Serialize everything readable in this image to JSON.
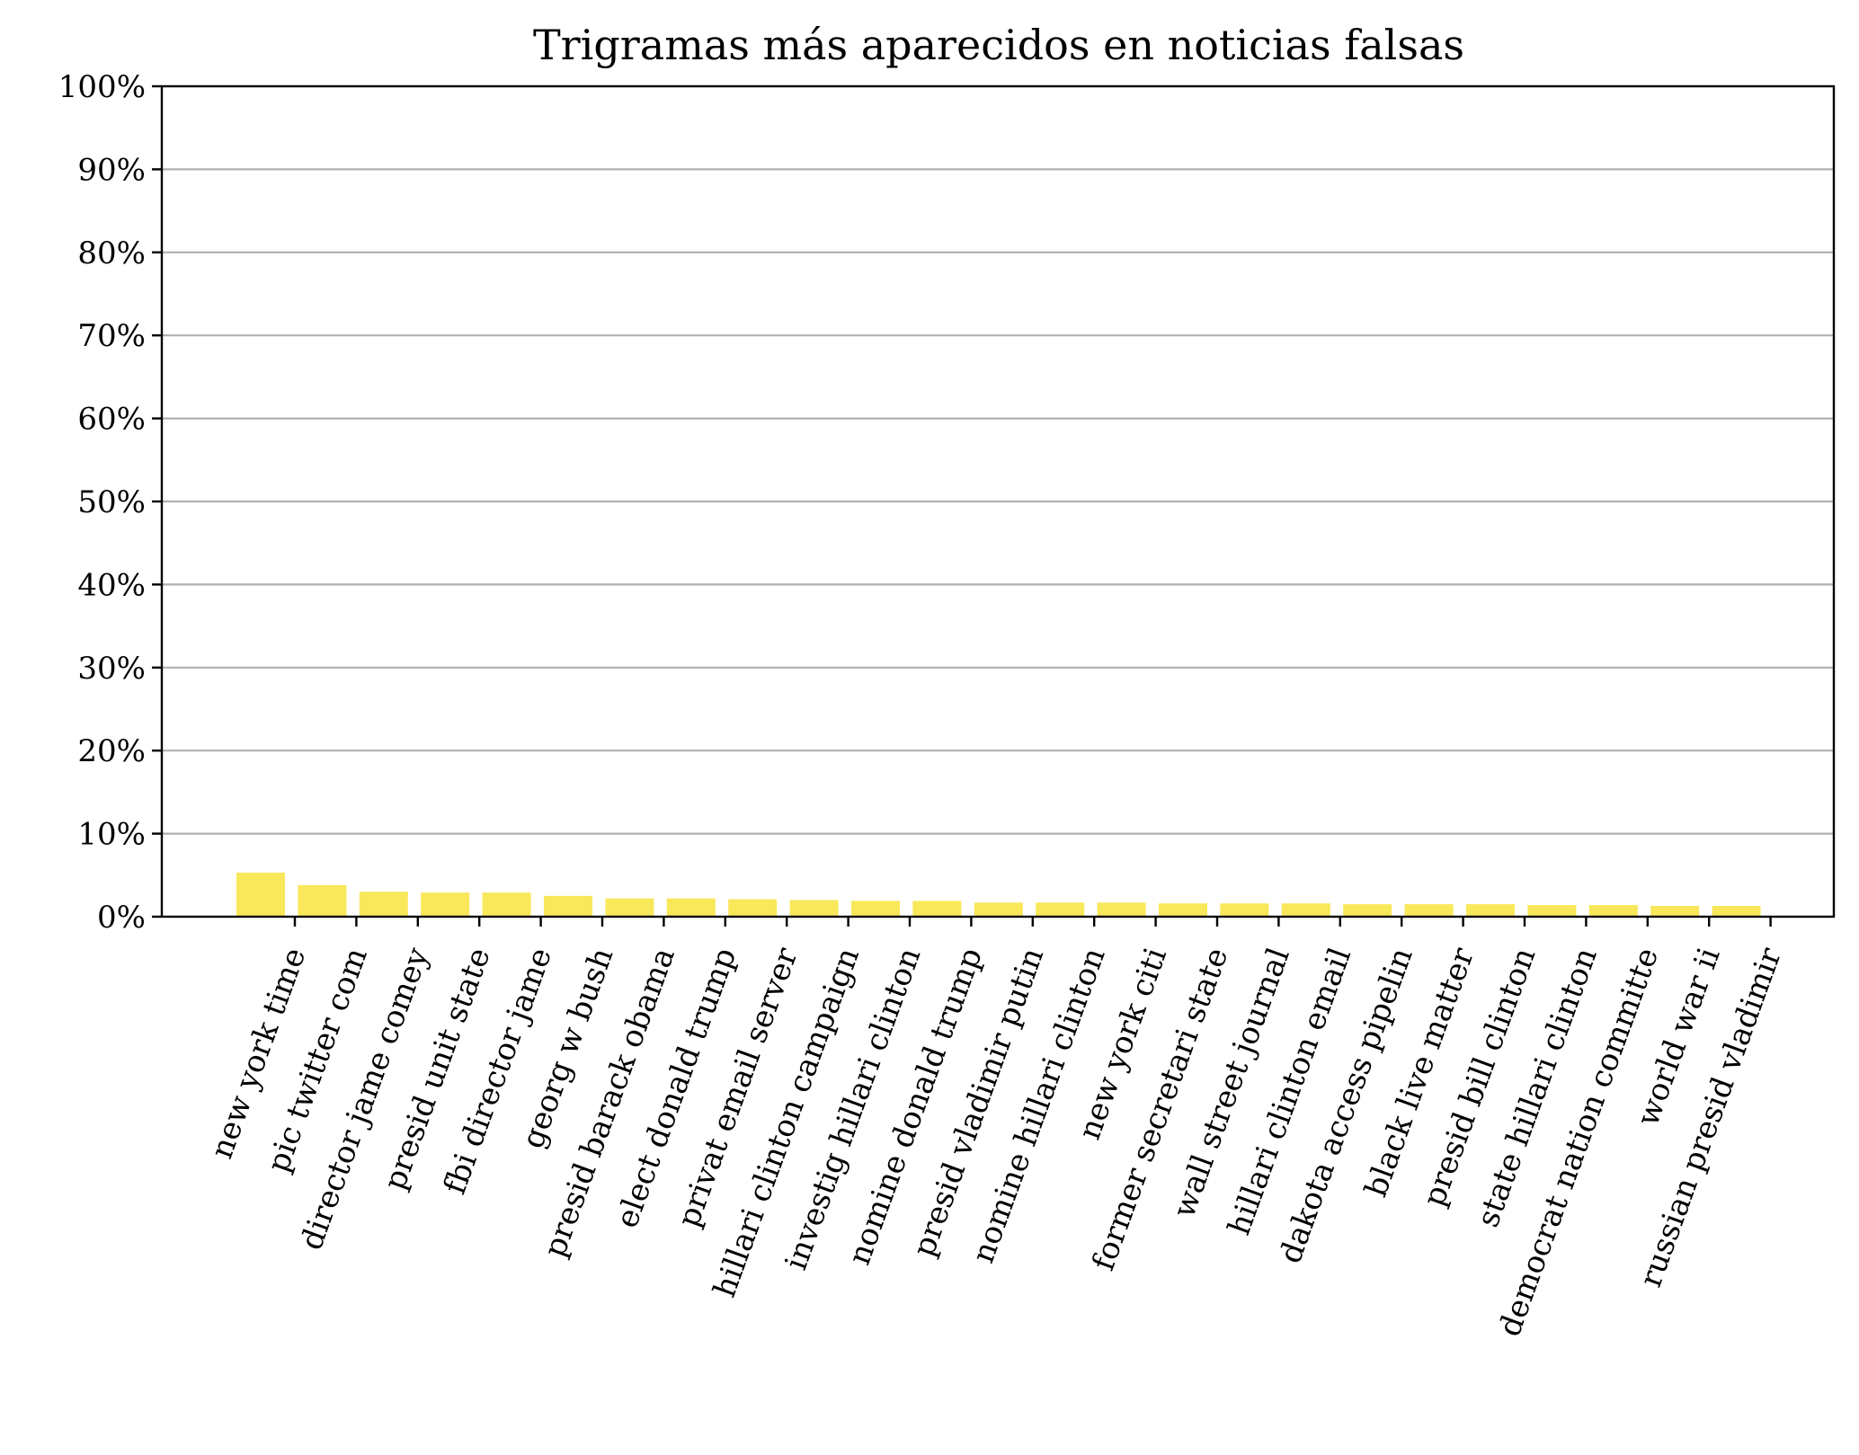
{
  "chart_data": {
    "type": "bar",
    "title": "Trigramas más aparecidos en noticias falsas",
    "xlabel": "",
    "ylabel": "",
    "ylim": [
      0,
      100
    ],
    "yticks": [
      0,
      10,
      20,
      30,
      40,
      50,
      60,
      70,
      80,
      90,
      100
    ],
    "ytick_labels": [
      "0%",
      "10%",
      "20%",
      "30%",
      "40%",
      "50%",
      "60%",
      "70%",
      "80%",
      "90%",
      "100%"
    ],
    "grid": "horizontal",
    "bar_color": "#f8e85a",
    "categories": [
      "new york time",
      "pic twitter com",
      "director jame comey",
      "presid unit state",
      "fbi director jame",
      "georg w bush",
      "presid barack obama",
      "elect donald trump",
      "privat email server",
      "hillari clinton campaign",
      "investig hillari clinton",
      "nomine donald trump",
      "presid vladimir putin",
      "nomine hillari clinton",
      "new york citi",
      "former secretari state",
      "wall street journal",
      "hillari clinton email",
      "dakota access pipelin",
      "black live matter",
      "presid bill clinton",
      "state hillari clinton",
      "democrat nation committe",
      "world war ii",
      "russian presid vladimir"
    ],
    "values": [
      5.3,
      3.8,
      3.0,
      2.9,
      2.9,
      2.5,
      2.2,
      2.2,
      2.1,
      2.0,
      1.9,
      1.9,
      1.7,
      1.7,
      1.7,
      1.6,
      1.6,
      1.6,
      1.5,
      1.5,
      1.5,
      1.4,
      1.4,
      1.3,
      1.3
    ]
  }
}
